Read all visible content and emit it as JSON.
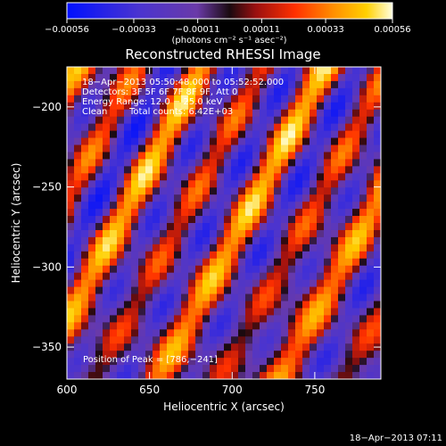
{
  "chart_data": {
    "type": "heatmap",
    "title": "Reconstructed RHESSI Image",
    "xlabel": "Heliocentric X (arcsec)",
    "ylabel": "Heliocentric Y (arcsec)",
    "xlim": [
      600,
      790
    ],
    "ylim": [
      -370,
      -175
    ],
    "xticks": [
      600,
      650,
      700,
      750
    ],
    "xtick_labels": [
      "600",
      "650",
      "700",
      "750"
    ],
    "yticks": [
      -200,
      -250,
      -300,
      -350
    ],
    "ytick_labels": [
      "−200",
      "−250",
      "−300",
      "−350"
    ],
    "colorbar": {
      "range": [
        -0.00056,
        0.00056
      ],
      "ticks": [
        -0.00056,
        -0.00033,
        -0.00011,
        0.00011,
        0.00033,
        0.00056
      ],
      "tick_labels": [
        "−0.00056",
        "−0.00033",
        "−0.00011",
        "0.00011",
        "0.00033",
        "0.00056"
      ],
      "units_label": "(photons cm⁻² s⁻¹ asec⁻²)"
    },
    "annotations": {
      "time": "18−Apr−2013 05:50:48.000 to 05:52:52.000",
      "detectors": "Detectors: 3F 5F 6F 7F 8F 9F, Att 0",
      "energy": "Energy Range: 12.0 − 25.0 keV",
      "method": "Clean",
      "counts": "Total counts: 6.42E+03",
      "peak": "Position of Peak = [786,−241]"
    },
    "footer_date": "18−Apr−2013 07:11",
    "peak_position": [
      786,
      -241
    ]
  },
  "colors": {
    "background": "#000000",
    "text": "#ffffff",
    "colormap": [
      "#0010ff",
      "#5030c8",
      "#6a3aa8",
      "#1a0a10",
      "#a01010",
      "#ff3000",
      "#ff9000",
      "#ffd000",
      "#ffffe0"
    ]
  }
}
